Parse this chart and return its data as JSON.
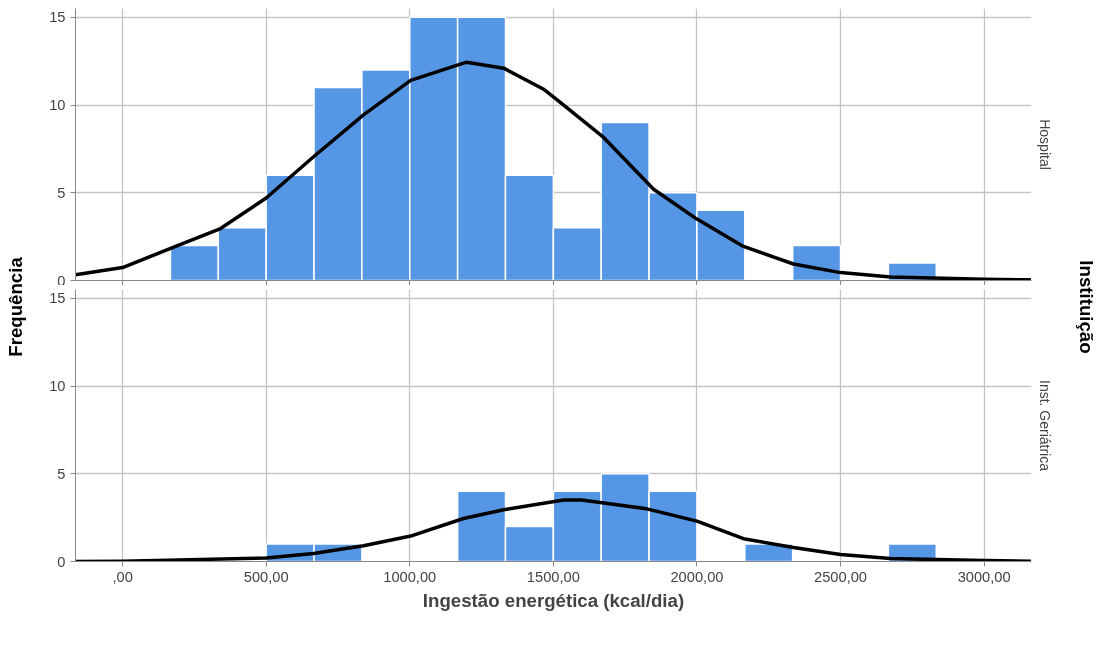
{
  "chart_data": [
    {
      "type": "histogram",
      "title": "Hospital",
      "ylabel": "Frequência",
      "annotations": [
        "Instituição"
      ],
      "bins": [
        166.67,
        333.33,
        500,
        666.67,
        833.33,
        1000,
        1166.67,
        1333.33,
        1500,
        1666.67,
        1833.33,
        2000,
        2166.67,
        2333.33,
        2500,
        2666.67,
        2833.33
      ],
      "values": [
        2,
        3,
        6,
        11,
        12,
        15,
        15,
        6,
        3,
        9,
        5,
        4,
        0,
        2,
        0,
        1
      ],
      "color": "#5596e5",
      "series": [
        {
          "type": "line",
          "color": "#000000",
          "x": [
            -164,
            0,
            178,
            341,
            500,
            665,
            839,
            1003,
            1198,
            1327,
            1466,
            1536,
            1675,
            1849,
            2000,
            2162,
            2336,
            2500,
            2674,
            3000,
            3163
          ],
          "values": [
            0.33,
            0.74,
            1.9,
            2.96,
            4.7,
            7.05,
            9.44,
            11.4,
            12.44,
            12.1,
            10.9,
            10.0,
            8.15,
            5.2,
            3.5,
            1.94,
            0.94,
            0.45,
            0.2,
            0.07,
            0.04
          ]
        }
      ],
      "xlim": [
        -164,
        3165
      ],
      "ylim": [
        0,
        15.5
      ],
      "yticks": [
        0,
        5,
        10,
        15
      ],
      "xticks": [
        {
          "value": 0,
          "label": null
        },
        {
          "value": 500,
          "label": null
        },
        {
          "value": 1000,
          "label": null
        },
        {
          "value": 1500,
          "label": null
        },
        {
          "value": 2000,
          "label": null
        },
        {
          "value": 2500,
          "label": null
        },
        {
          "value": 3000,
          "label": null
        }
      ],
      "grid": true,
      "tick_labels": "y"
    },
    {
      "type": "histogram",
      "title": "Inst. Geriátrica",
      "xlabel": "Ingestão energética (kcal/dia)",
      "bins": [
        166.67,
        333.33,
        500,
        666.67,
        833.33,
        1000,
        1166.67,
        1333.33,
        1500,
        1666.67,
        1833.33,
        2000,
        2166.67,
        2333.33,
        2500,
        2666.67,
        2833.33
      ],
      "values": [
        0,
        0,
        1,
        1,
        0,
        0,
        4,
        2,
        4,
        5,
        4,
        0,
        1,
        0,
        0,
        1
      ],
      "color": "#5596e5",
      "series": [
        {
          "type": "line",
          "color": "#000000",
          "x": [
            -164,
            0,
            500,
            665,
            839,
            1003,
            1187,
            1327,
            1536,
            1599,
            1825,
            2000,
            2162,
            2336,
            2500,
            2674,
            3000,
            3163
          ],
          "values": [
            0,
            0.02,
            0.2,
            0.45,
            0.9,
            1.45,
            2.45,
            2.95,
            3.5,
            3.5,
            3.0,
            2.3,
            1.3,
            0.8,
            0.4,
            0.17,
            0.05,
            0.02
          ]
        }
      ],
      "xlim": [
        -164,
        3165
      ],
      "ylim": [
        0,
        15.5
      ],
      "yticks": [
        0,
        5,
        10,
        15
      ],
      "xticks": [
        {
          "value": 0,
          "label": ",00"
        },
        {
          "value": 500,
          "label": "500,00"
        },
        {
          "value": 1000,
          "label": "1000,00"
        },
        {
          "value": 1500,
          "label": "1500,00"
        },
        {
          "value": 2000,
          "label": "2000,00"
        },
        {
          "value": 2500,
          "label": "2500,00"
        },
        {
          "value": 3000,
          "label": "3000,00"
        }
      ],
      "grid": true
    }
  ]
}
